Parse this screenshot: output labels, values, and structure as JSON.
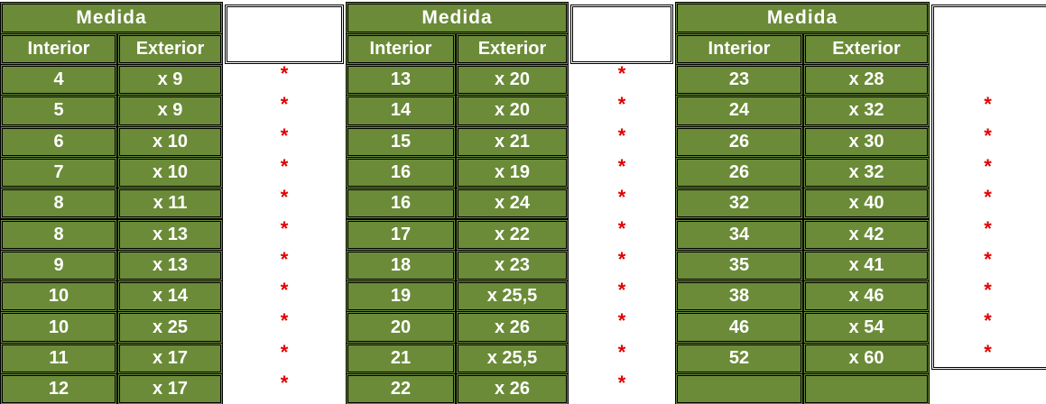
{
  "groups": [
    {
      "header": "Medida",
      "subheaders": [
        "Interior",
        "Exterior"
      ],
      "rows": [
        {
          "interior": "4",
          "exterior": "x 9",
          "mark": "*"
        },
        {
          "interior": "5",
          "exterior": "x 9",
          "mark": "*"
        },
        {
          "interior": "6",
          "exterior": "x 10",
          "mark": "*"
        },
        {
          "interior": "7",
          "exterior": "x 10",
          "mark": "*"
        },
        {
          "interior": "8",
          "exterior": "x 11",
          "mark": "*"
        },
        {
          "interior": "8",
          "exterior": "x 13",
          "mark": "*"
        },
        {
          "interior": "9",
          "exterior": "x 13",
          "mark": "*"
        },
        {
          "interior": "10",
          "exterior": "x 14",
          "mark": "*"
        },
        {
          "interior": "10",
          "exterior": "x 25",
          "mark": "*"
        },
        {
          "interior": "11",
          "exterior": "x 17",
          "mark": "*"
        },
        {
          "interior": "12",
          "exterior": "x 17",
          "mark": "*"
        }
      ]
    },
    {
      "header": "Medida",
      "subheaders": [
        "Interior",
        "Exterior"
      ],
      "rows": [
        {
          "interior": "13",
          "exterior": "x 20",
          "mark": "*"
        },
        {
          "interior": "14",
          "exterior": "x 20",
          "mark": "*"
        },
        {
          "interior": "15",
          "exterior": "x 21",
          "mark": "*"
        },
        {
          "interior": "16",
          "exterior": "x 19",
          "mark": "*"
        },
        {
          "interior": "16",
          "exterior": "x 24",
          "mark": "*"
        },
        {
          "interior": "17",
          "exterior": "x 22",
          "mark": "*"
        },
        {
          "interior": "18",
          "exterior": "x 23",
          "mark": "*"
        },
        {
          "interior": "19",
          "exterior": "x 25,5",
          "mark": "*"
        },
        {
          "interior": "20",
          "exterior": "x 26",
          "mark": "*"
        },
        {
          "interior": "21",
          "exterior": "x 25,5",
          "mark": "*"
        },
        {
          "interior": "22",
          "exterior": "x 26",
          "mark": "*"
        }
      ]
    },
    {
      "header": "Medida",
      "subheaders": [
        "Interior",
        "Exterior"
      ],
      "rows": [
        {
          "interior": "23",
          "exterior": "x 28"
        },
        {
          "interior": "24",
          "exterior": "x 32",
          "mark": "*"
        },
        {
          "interior": "26",
          "exterior": "x 30",
          "mark": "*"
        },
        {
          "interior": "26",
          "exterior": "x 32",
          "mark": "*"
        },
        {
          "interior": "32",
          "exterior": "x 40",
          "mark": "*"
        },
        {
          "interior": "34",
          "exterior": "x 42",
          "mark": "*"
        },
        {
          "interior": "35",
          "exterior": "x 41",
          "mark": "*"
        },
        {
          "interior": "38",
          "exterior": "x 46",
          "mark": "*"
        },
        {
          "interior": "46",
          "exterior": "x 54",
          "mark": "*"
        },
        {
          "interior": "52",
          "exterior": "x 60",
          "mark": "*"
        }
      ]
    }
  ]
}
